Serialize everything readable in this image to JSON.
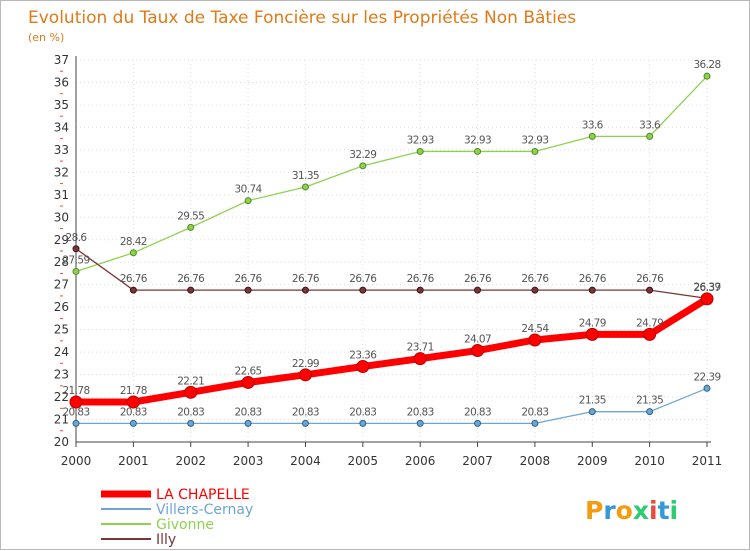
{
  "chart_data": {
    "type": "line",
    "title": "Evolution du Taux de Taxe Foncière sur les Propriétés Non Bâties",
    "subtitle": "(en %)",
    "x": [
      "2000",
      "2001",
      "2002",
      "2003",
      "2004",
      "2005",
      "2006",
      "2007",
      "2008",
      "2009",
      "2010",
      "2011"
    ],
    "ylim": [
      20,
      37
    ],
    "yticks": [
      "20",
      "21",
      "22",
      "23",
      "24",
      "25",
      "26",
      "27",
      "28",
      "29",
      "30",
      "31",
      "32",
      "33",
      "34",
      "35",
      "36",
      "37"
    ],
    "grid": true,
    "legend_position": "bottom-left",
    "series": [
      {
        "name": "LA CHAPELLE",
        "color": "#ff0000",
        "values": [
          21.78,
          21.78,
          22.21,
          22.65,
          22.99,
          23.36,
          23.71,
          24.07,
          24.54,
          24.79,
          24.79,
          26.37
        ],
        "labels": [
          "21.78",
          "21.78",
          "22.21",
          "22.65",
          "22.99",
          "23.36",
          "23.71",
          "24.07",
          "24.54",
          "24.79",
          "24.79",
          "26.37"
        ]
      },
      {
        "name": "Villers-Cernay",
        "color": "#6ea6d2",
        "values": [
          20.83,
          20.83,
          20.83,
          20.83,
          20.83,
          20.83,
          20.83,
          20.83,
          20.83,
          21.35,
          21.35,
          22.39
        ],
        "labels": [
          "20.83",
          "20.83",
          "20.83",
          "20.83",
          "20.83",
          "20.83",
          "20.83",
          "20.83",
          "20.83",
          "21.35",
          "21.35",
          "22.39"
        ]
      },
      {
        "name": "Givonne",
        "color": "#8fd14f",
        "values": [
          27.59,
          28.42,
          29.55,
          30.74,
          31.35,
          32.29,
          32.93,
          32.93,
          32.93,
          33.6,
          33.6,
          36.28
        ],
        "labels": [
          "27.59",
          "28.42",
          "29.55",
          "30.74",
          "31.35",
          "32.29",
          "32.93",
          "32.93",
          "32.93",
          "33.6",
          "33.6",
          "36.28"
        ]
      },
      {
        "name": "Illy",
        "color": "#7a3535",
        "values": [
          28.6,
          26.76,
          26.76,
          26.76,
          26.76,
          26.76,
          26.76,
          26.76,
          26.76,
          26.76,
          26.76,
          26.39
        ],
        "labels": [
          "28.6",
          "26.76",
          "26.76",
          "26.76",
          "26.76",
          "26.76",
          "26.76",
          "26.76",
          "26.76",
          "26.76",
          "26.76",
          "26.39"
        ]
      }
    ]
  },
  "logo": {
    "text": "Proxiti",
    "letter_colors": [
      "#f39c12",
      "#3498db",
      "#f39c12",
      "#2ecc71",
      "#e74c3c",
      "#3498db",
      "#2ecc71"
    ]
  }
}
